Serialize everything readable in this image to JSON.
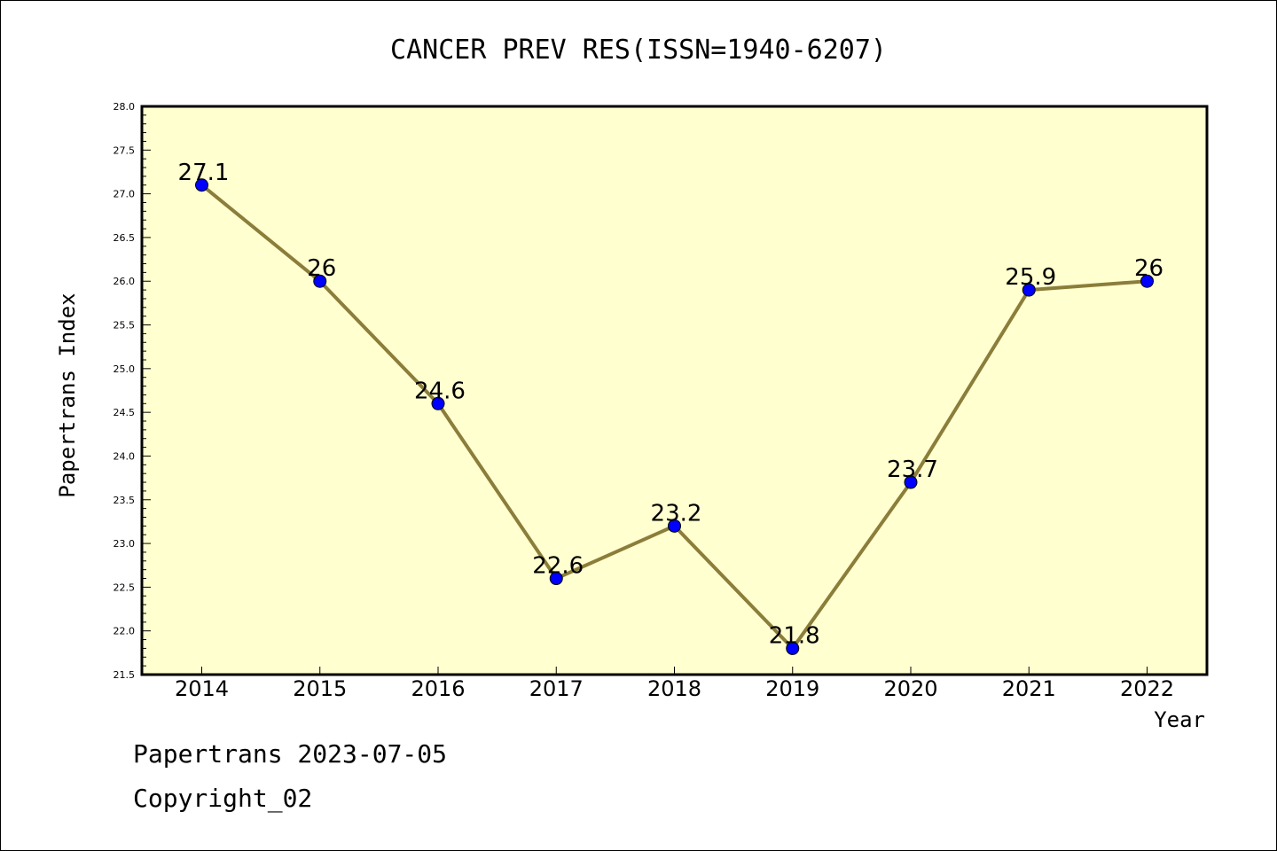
{
  "chart_data": {
    "type": "line",
    "title": "CANCER PREV RES(ISSN=1940-6207)",
    "xlabel": "Year",
    "ylabel": "Papertrans Index",
    "categories": [
      "2014",
      "2015",
      "2016",
      "2017",
      "2018",
      "2019",
      "2020",
      "2021",
      "2022"
    ],
    "values": [
      27.1,
      26,
      24.6,
      22.6,
      23.2,
      21.8,
      23.7,
      25.9,
      26
    ],
    "data_labels": [
      "27.1",
      "26",
      "24.6",
      "22.6",
      "23.2",
      "21.8",
      "23.7",
      "25.9",
      "26"
    ],
    "ylim": [
      21.5,
      28.0
    ],
    "yticks": [
      "21.5",
      "22.0",
      "22.5",
      "23.0",
      "23.5",
      "24.0",
      "24.5",
      "25.0",
      "25.5",
      "26.0",
      "26.5",
      "27.0",
      "27.5",
      "28.0"
    ],
    "grid": false,
    "colors": {
      "plot_background": "#ffffd0",
      "line": "#8b7d3a",
      "marker": "#0000ff"
    }
  },
  "footer": {
    "line1": "Papertrans 2023-07-05",
    "line2": "Copyright_02"
  }
}
